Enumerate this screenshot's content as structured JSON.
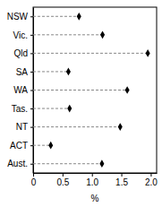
{
  "chart_data": {
    "type": "dot",
    "orientation": "horizontal",
    "categories": [
      "NSW",
      "Vic.",
      "Qld",
      "SA",
      "WA",
      "Tas.",
      "NT",
      "ACT",
      "Aust."
    ],
    "values": [
      0.78,
      1.18,
      1.95,
      0.6,
      1.6,
      0.62,
      1.48,
      0.3,
      1.17
    ],
    "color": "#000000",
    "marker": "diamond",
    "line_style": "dashed",
    "xlabel": "%",
    "xlim": [
      0,
      2.1
    ],
    "xticks": [
      0,
      0.5,
      {
        "value": 1,
        "label": "1.0"
      },
      1.5,
      {
        "value": 2,
        "label": "2.0"
      }
    ]
  }
}
